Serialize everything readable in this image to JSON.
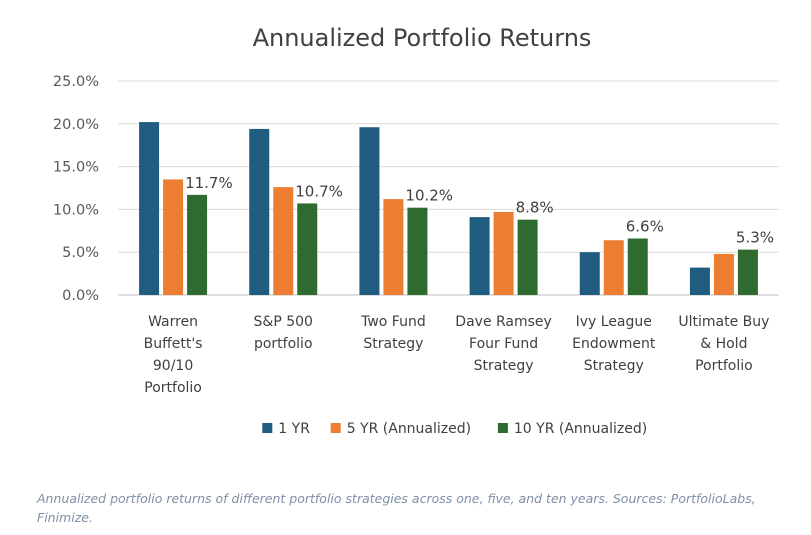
{
  "chart_data": {
    "type": "bar",
    "title": "Annualized Portfolio Returns",
    "categories": [
      [
        "Warren",
        "Buffett's",
        "90/10",
        "Portfolio"
      ],
      [
        "S&P 500",
        "portfolio"
      ],
      [
        "Two Fund",
        "Strategy"
      ],
      [
        "Dave Ramsey",
        "Four Fund",
        "Strategy"
      ],
      [
        "Ivy League",
        "Endowment",
        "Strategy"
      ],
      [
        "Ultimate Buy",
        "& Hold",
        "Portfolio"
      ]
    ],
    "series": [
      {
        "name": "1 YR",
        "color": "#1f5c80",
        "values": [
          20.2,
          19.4,
          19.6,
          9.1,
          5.0,
          3.2
        ]
      },
      {
        "name": "5 YR (Annualized)",
        "color": "#ed7d31",
        "values": [
          13.5,
          12.6,
          11.2,
          9.7,
          6.4,
          4.8
        ]
      },
      {
        "name": "10 YR (Annualized)",
        "color": "#2f6b2f",
        "values": [
          11.7,
          10.7,
          10.2,
          8.8,
          6.6,
          5.3
        ]
      }
    ],
    "data_labels": [
      "11.7%",
      "10.7%",
      "10.2%",
      "8.8%",
      "6.6%",
      "5.3%"
    ],
    "y_ticks": [
      "0.0%",
      "5.0%",
      "10.0%",
      "15.0%",
      "20.0%",
      "25.0%"
    ],
    "ylim": [
      0,
      25
    ],
    "grid": true,
    "legend_position": "bottom"
  },
  "caption": "Annualized portfolio returns of different portfolio strategies across one, five, and ten years. Sources: PortfolioLabs, Finimize."
}
